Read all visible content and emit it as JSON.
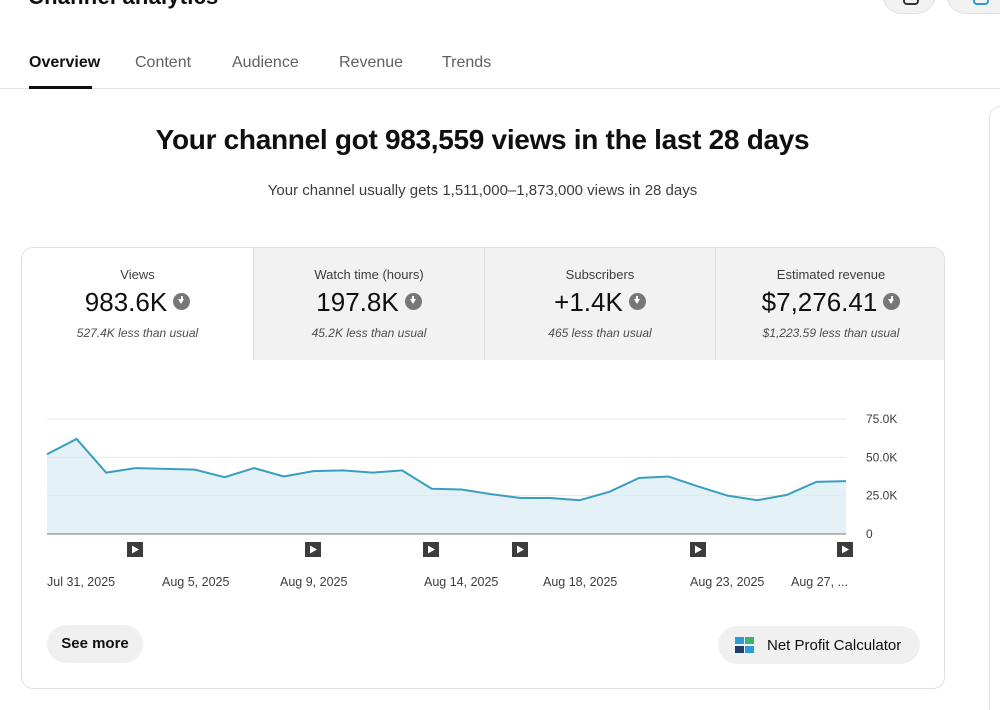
{
  "page": {
    "title": "Channel analytics"
  },
  "tabs": [
    {
      "label": "Overview",
      "active": true
    },
    {
      "label": "Content",
      "active": false
    },
    {
      "label": "Audience",
      "active": false
    },
    {
      "label": "Revenue",
      "active": false
    },
    {
      "label": "Trends",
      "active": false
    }
  ],
  "summary": {
    "headline": "Your channel got 983,559 views in the last 28 days",
    "subline": "Your channel usually gets 1,511,000–1,873,000 views in 28 days"
  },
  "metrics": [
    {
      "label": "Views",
      "value": "983.6K",
      "note": "527.4K less than usual",
      "trend_icon": "arrow-down-circle-icon",
      "selected": true
    },
    {
      "label": "Watch time (hours)",
      "value": "197.8K",
      "note": "45.2K less than usual",
      "trend_icon": "arrow-down-circle-icon",
      "selected": false
    },
    {
      "label": "Subscribers",
      "value": "+1.4K",
      "note": "465 less than usual",
      "trend_icon": "arrow-down-circle-icon",
      "selected": false
    },
    {
      "label": "Estimated revenue",
      "value": "$7,276.41",
      "note": "$1,223.59 less than usual",
      "trend_icon": "arrow-down-circle-icon",
      "selected": false
    }
  ],
  "chart_data": {
    "type": "area",
    "series": [
      {
        "values": [
          52000,
          62000,
          40000,
          43000,
          42500,
          42000,
          37000,
          43000,
          37500,
          41000,
          41500,
          40000,
          41500,
          29500,
          29000,
          26000,
          23500,
          23500,
          22000,
          27500,
          36500,
          37500,
          31000,
          25000,
          22000,
          25500,
          34000,
          34500
        ]
      }
    ],
    "x_tick_labels": [
      "Jul 31, 2025",
      "Aug 5, 2025",
      "Aug 9, 2025",
      "Aug 14, 2025",
      "Aug 18, 2025",
      "Aug 23, 2025",
      "Aug 27, ..."
    ],
    "x_tick_indices": [
      0,
      5,
      9,
      14,
      18,
      23,
      27
    ],
    "y_ticks": [
      "0",
      "25.0K",
      "50.0K",
      "75.0K"
    ],
    "y_tick_values": [
      0,
      25000,
      50000,
      75000
    ],
    "ylim": [
      0,
      75000
    ],
    "grid": true,
    "line_color": "#3a9ec0",
    "fill_color": "#e4f2f8",
    "video_markers": [
      3,
      9,
      14,
      16,
      24,
      31
    ]
  },
  "actions": {
    "see_more": "See more",
    "net_profit": "Net Profit Calculator"
  },
  "colors": {
    "accent": "#0f0f0f",
    "chart_line": "#3a9ec0"
  }
}
